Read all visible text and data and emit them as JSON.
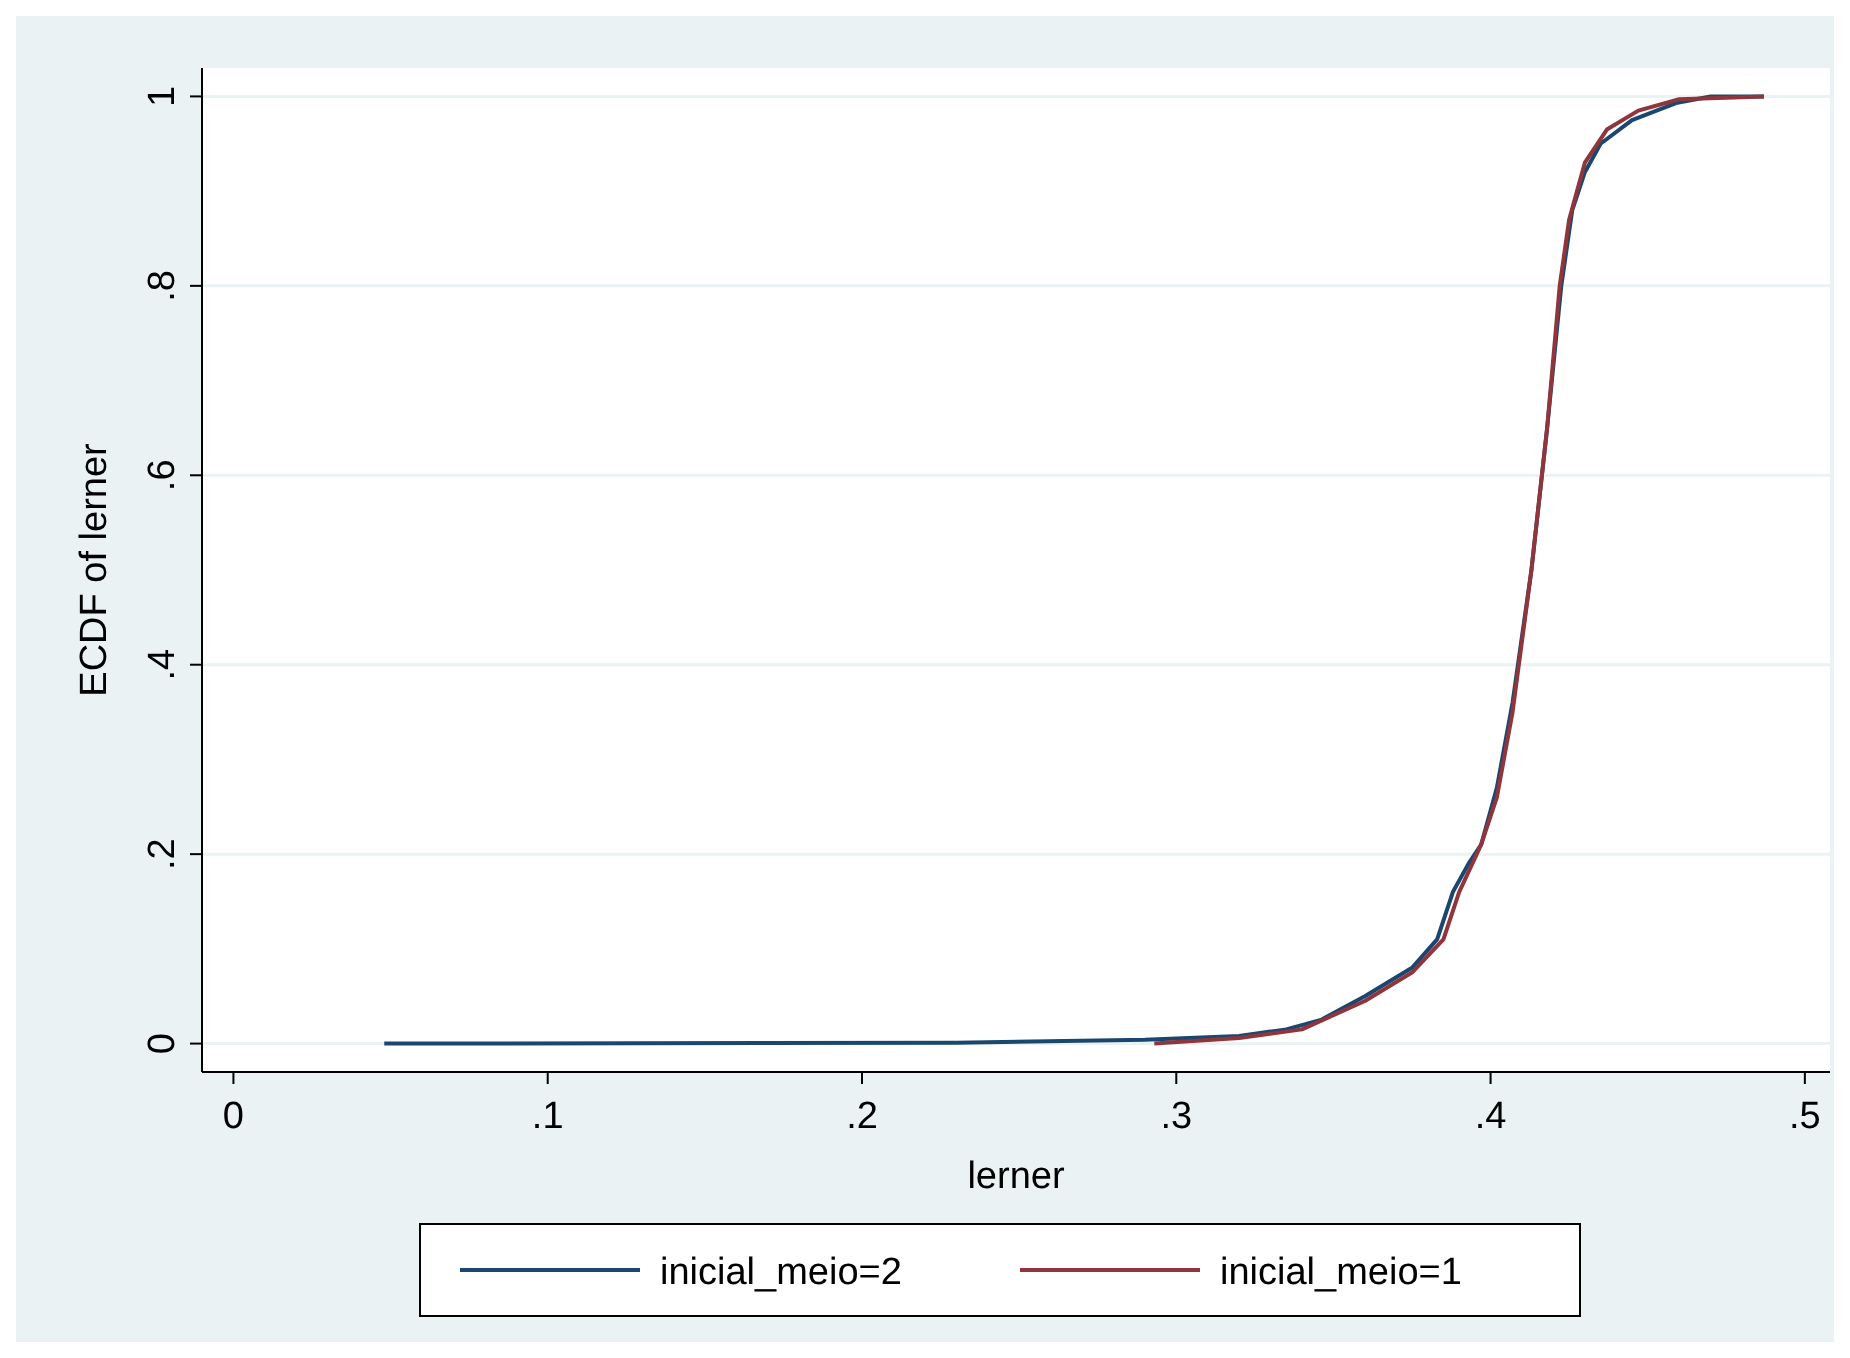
{
  "chart_data": {
    "type": "line",
    "xlabel": "lerner",
    "ylabel": "ECDF of lerner",
    "xlim": [
      -0.01,
      0.508
    ],
    "xticks": [
      0,
      {
        "value": 0.1,
        "label": ".1"
      },
      {
        "value": 0.2,
        "label": ".2"
      },
      {
        "value": 0.3,
        "label": ".3"
      },
      {
        "value": 0.4,
        "label": ".4"
      },
      {
        "value": 0.5,
        "label": ".5"
      }
    ],
    "ylim": [
      -0.03,
      1.03
    ],
    "yticks": [
      0,
      {
        "value": 0.2,
        "label": ".2"
      },
      {
        "value": 0.4,
        "label": ".4"
      },
      {
        "value": 0.6,
        "label": ".6"
      },
      {
        "value": 0.8,
        "label": ".8"
      },
      1
    ],
    "grid": "y",
    "legend": "bottom",
    "line_style": "solid",
    "marker": "none",
    "series": [
      {
        "name": "inicial_meio=2",
        "color": "#1a476f",
        "x": [
          0.048,
          0.23,
          0.29,
          0.32,
          0.335,
          0.346,
          0.36,
          0.375,
          0.383,
          0.388,
          0.393,
          0.397,
          0.402,
          0.407,
          0.413,
          0.418,
          0.4225,
          0.426,
          0.43,
          0.435,
          0.445,
          0.459,
          0.47,
          0.487
        ],
        "values": [
          0,
          0.001,
          0.004,
          0.008,
          0.015,
          0.025,
          0.05,
          0.08,
          0.11,
          0.16,
          0.19,
          0.21,
          0.27,
          0.36,
          0.5,
          0.65,
          0.8,
          0.88,
          0.92,
          0.95,
          0.975,
          0.993,
          1,
          1
        ]
      },
      {
        "name": "inicial_meio=1",
        "color": "#90353b",
        "x": [
          0.293,
          0.32,
          0.34,
          0.36,
          0.375,
          0.385,
          0.39,
          0.397,
          0.402,
          0.407,
          0.413,
          0.418,
          0.422,
          0.425,
          0.43,
          0.437,
          0.447,
          0.46,
          0.487
        ],
        "values": [
          0,
          0.006,
          0.015,
          0.045,
          0.075,
          0.11,
          0.16,
          0.21,
          0.26,
          0.35,
          0.5,
          0.65,
          0.8,
          0.87,
          0.93,
          0.965,
          0.985,
          0.997,
          1
        ]
      }
    ]
  }
}
